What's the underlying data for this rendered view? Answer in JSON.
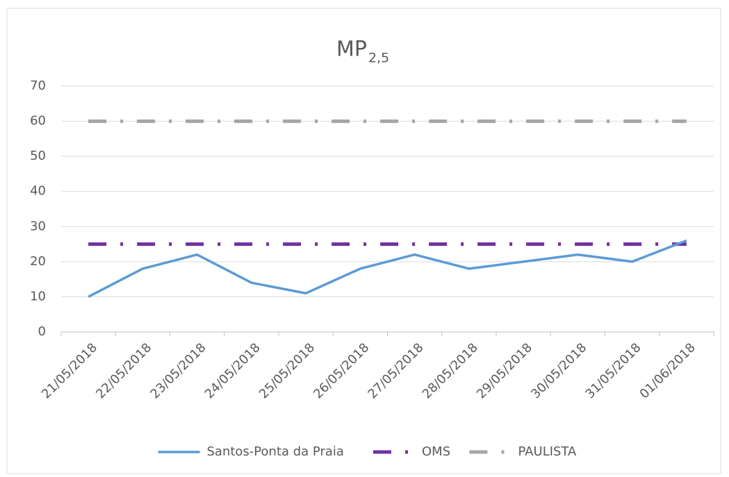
{
  "chart_data": {
    "type": "line",
    "title": "MP",
    "title_subscript": "2,5",
    "categories": [
      "21/05/2018",
      "22/05/2018",
      "23/05/2018",
      "24/05/2018",
      "25/05/2018",
      "26/05/2018",
      "27/05/2018",
      "28/05/2018",
      "29/05/2018",
      "30/05/2018",
      "31/05/2018",
      "01/06/2018"
    ],
    "series": [
      {
        "name": "Santos-Ponta da Praia",
        "color": "#5b9bd5",
        "style": "solid",
        "values": [
          10,
          18,
          22,
          14,
          11,
          18,
          22,
          18,
          20,
          22,
          20,
          26
        ]
      },
      {
        "name": "OMS",
        "color": "#7030a0",
        "style": "dashdot",
        "values": [
          25,
          25,
          25,
          25,
          25,
          25,
          25,
          25,
          25,
          25,
          25,
          25
        ]
      },
      {
        "name": "PAULISTA",
        "color": "#a5a5a5",
        "style": "dashdot",
        "values": [
          60,
          60,
          60,
          60,
          60,
          60,
          60,
          60,
          60,
          60,
          60,
          60
        ]
      }
    ],
    "ylim": [
      0,
      70
    ],
    "yticks": [
      0,
      10,
      20,
      30,
      40,
      50,
      60,
      70
    ],
    "grid": true,
    "legend": "bottom"
  }
}
